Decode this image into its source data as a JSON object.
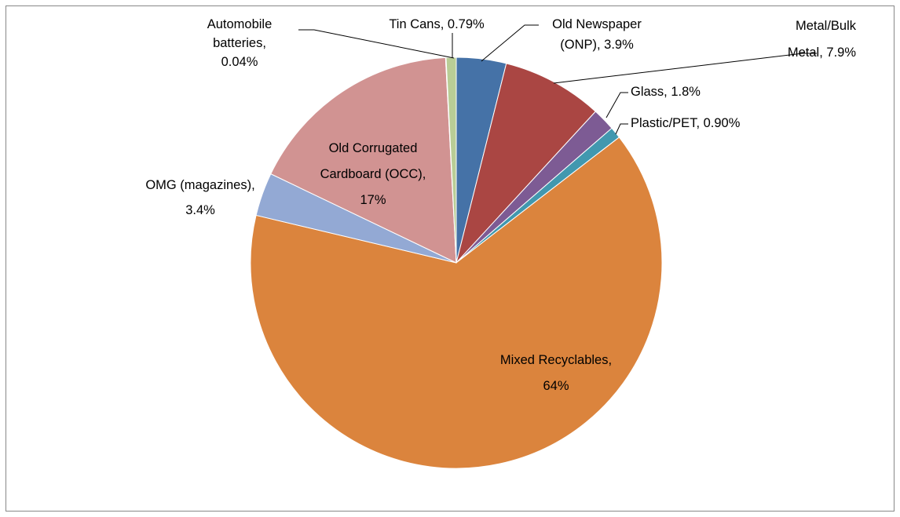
{
  "chart_data": {
    "type": "pie",
    "values": [
      3.9,
      7.9,
      1.8,
      0.9,
      64,
      3.4,
      17,
      0.04,
      0.79
    ],
    "value_labels": [
      [
        "Old Newspaper",
        "(ONP), 3.9%"
      ],
      [
        "Metal/Bulk",
        "Metal, 7.9%"
      ],
      [
        "Glass, 1.8%"
      ],
      [
        "Plastic/PET, 0.90%"
      ],
      [
        "Mixed Recyclables,",
        "64%"
      ],
      [
        "OMG (magazines),",
        "3.4%"
      ],
      [
        "Old Corrugated",
        "Cardboard (OCC),",
        "17%"
      ],
      [
        "Automobile",
        "batteries,",
        "0.04%"
      ],
      [
        "Tin Cans, 0.79%"
      ]
    ],
    "colors": [
      "#4572a7",
      "#aa4643",
      "#7d5b94",
      "#4198af",
      "#db843d",
      "#93a9d4",
      "#d19392",
      "#a99bbd",
      "#b9cd96"
    ]
  }
}
